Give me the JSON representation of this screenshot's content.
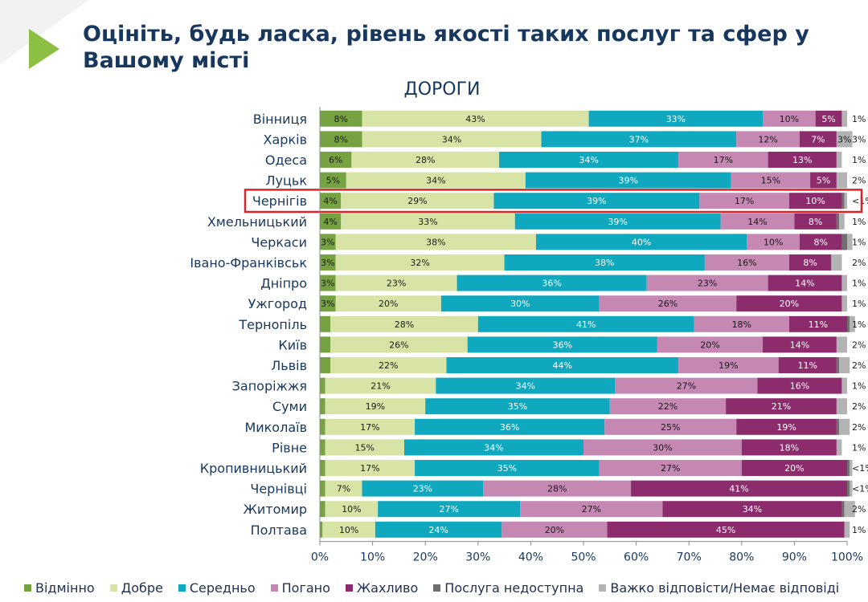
{
  "slide": {
    "title": "Оцініть, будь ласка, рівень якості таких послуг та сфер у Вашому місті"
  },
  "chart_data": {
    "type": "bar",
    "orientation": "horizontal",
    "stacked": true,
    "title": "ДОРОГИ",
    "xlim": [
      0,
      100
    ],
    "x_ticks": [
      "0%",
      "10%",
      "20%",
      "30%",
      "40%",
      "50%",
      "60%",
      "70%",
      "80%",
      "90%",
      "100%"
    ],
    "grid": false,
    "legend_position": "bottom",
    "highlighted_category": "Чернігів",
    "categories": [
      "Вінниця",
      "Харків",
      "Одеса",
      "Луцьк",
      "Чернігів",
      "Хмельницький",
      "Черкаси",
      "Івано-Франківськ",
      "Дніпро",
      "Ужгород",
      "Тернопіль",
      "Київ",
      "Львів",
      "Запоріжжя",
      "Суми",
      "Миколаїв",
      "Рівне",
      "Кропивницький",
      "Чернівці",
      "Житомир",
      "Полтава"
    ],
    "series": [
      {
        "name": "Відмінно",
        "color": "#77a242",
        "values": [
          8,
          8,
          6,
          5,
          4,
          4,
          3,
          3,
          3,
          3,
          2,
          2,
          2,
          1,
          1,
          1,
          1,
          1,
          1,
          1,
          0.5
        ],
        "labels": [
          "8%",
          "8%",
          "6%",
          "5%",
          "4%",
          "4%",
          "3%",
          "3%",
          "3%",
          "3%",
          "2%",
          "2%",
          "2%",
          "1%",
          "1%",
          "1%",
          "1%",
          "1%",
          "1%",
          "1%",
          "<1%"
        ]
      },
      {
        "name": "Добре",
        "color": "#d7e4a6",
        "values": [
          43,
          34,
          28,
          34,
          29,
          33,
          38,
          32,
          23,
          20,
          28,
          26,
          22,
          21,
          19,
          17,
          15,
          17,
          7,
          10,
          10
        ],
        "labels": [
          "43%",
          "34%",
          "28%",
          "34%",
          "29%",
          "33%",
          "38%",
          "32%",
          "23%",
          "20%",
          "28%",
          "26%",
          "22%",
          "21%",
          "19%",
          "17%",
          "15%",
          "17%",
          "7%",
          "10%",
          "10%"
        ]
      },
      {
        "name": "Середньо",
        "color": "#10a8be",
        "values": [
          33,
          37,
          34,
          39,
          39,
          39,
          40,
          38,
          36,
          30,
          41,
          36,
          44,
          34,
          35,
          36,
          34,
          35,
          23,
          27,
          24
        ],
        "labels": [
          "33%",
          "37%",
          "34%",
          "39%",
          "39%",
          "39%",
          "40%",
          "38%",
          "36%",
          "30%",
          "41%",
          "36%",
          "44%",
          "34%",
          "35%",
          "36%",
          "34%",
          "35%",
          "23%",
          "27%",
          "24%"
        ]
      },
      {
        "name": "Погано",
        "color": "#c588b3",
        "values": [
          10,
          12,
          17,
          15,
          17,
          14,
          10,
          16,
          23,
          26,
          18,
          20,
          19,
          27,
          22,
          25,
          30,
          27,
          28,
          27,
          20
        ],
        "labels": [
          "10%",
          "12%",
          "17%",
          "15%",
          "17%",
          "14%",
          "10%",
          "16%",
          "23%",
          "26%",
          "18%",
          "20%",
          "19%",
          "27%",
          "22%",
          "25%",
          "30%",
          "27%",
          "28%",
          "27%",
          "20%"
        ]
      },
      {
        "name": "Жахливо",
        "color": "#8c2c6c",
        "values": [
          5,
          7,
          13,
          5,
          10,
          8,
          8,
          8,
          14,
          20,
          11,
          14,
          11,
          16,
          21,
          19,
          18,
          20,
          41,
          34,
          45
        ],
        "labels": [
          "5%",
          "7%",
          "13%",
          "5%",
          "10%",
          "8%",
          "8%",
          "8%",
          "14%",
          "20%",
          "11%",
          "14%",
          "11%",
          "16%",
          "21%",
          "19%",
          "18%",
          "20%",
          "41%",
          "34%",
          "45%"
        ]
      },
      {
        "name": "Послуга недоступна",
        "color": "#6f6f6f",
        "values": [
          0,
          0,
          0,
          0,
          0.5,
          0.5,
          1,
          0,
          0,
          0,
          0.5,
          0,
          0.5,
          0,
          0,
          0.5,
          0,
          0.5,
          0.5,
          0.5,
          0
        ],
        "labels": [
          "",
          "",
          "",
          "",
          "<1%",
          "<1%",
          "1%",
          "",
          "",
          "",
          "<1%",
          "",
          "<1%",
          "",
          "",
          "<1%",
          "",
          "<1%",
          "<1%",
          "<1%",
          ""
        ]
      },
      {
        "name": "Важко відповісти/Немає відповіді",
        "color": "#b3b3b3",
        "values": [
          1,
          3,
          1,
          2,
          0.5,
          1,
          1,
          2,
          1,
          1,
          1,
          2,
          2,
          1,
          2,
          2,
          1,
          0.5,
          0.5,
          2,
          1
        ],
        "labels": [
          "1%",
          "3%",
          "1%",
          "2%",
          "<1%",
          "1%",
          "1%",
          "2%",
          "1%",
          "1%",
          "1%",
          "2%",
          "2%",
          "1%",
          "2%",
          "2%",
          "1%",
          "<1%",
          "<1%",
          "2%",
          "1%"
        ]
      }
    ]
  }
}
